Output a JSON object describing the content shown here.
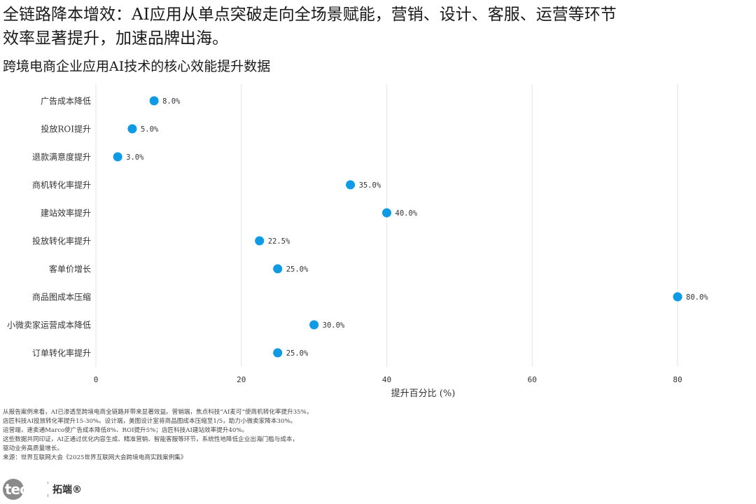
{
  "headline": {
    "line1": "全链路降本增效：AI应用从单点突破走向全场景赋能，营销、设计、客服、运营等环节",
    "line2": "效率显著提升，加速品牌出海。"
  },
  "chart_data": {
    "type": "scatter",
    "title": "跨境电商企业应用AI技术的核心效能提升数据",
    "xlabel": "提升百分比 (%)",
    "ylabel": "",
    "xlim": [
      0,
      85
    ],
    "xticks": [
      "0",
      "20",
      "40",
      "60",
      "80"
    ],
    "grid": "vertical",
    "marker_color": "#0E9AE4",
    "categories": [
      "广告成本降低",
      "投放ROI提升",
      "退款满意度提升",
      "商机转化率提升",
      "建站效率提升",
      "投放转化率提升",
      "客单价增长",
      "商品图成本压缩",
      "小微卖家运营成本降低",
      "订单转化率提升"
    ],
    "values": [
      8.0,
      5.0,
      3.0,
      35.0,
      40.0,
      22.5,
      25.0,
      80.0,
      30.0,
      25.0
    ],
    "value_labels": [
      "8.0%",
      "5.0%",
      "3.0%",
      "35.0%",
      "40.0%",
      "22.5%",
      "25.0%",
      "80.0%",
      "30.0%",
      "25.0%"
    ]
  },
  "notes": [
    "从报告案例来看，AI已渗透至跨境电商全链路并带来显著效益。营销端，焦点科技“AI麦可”使商机转化率提升35%，",
    "店匠科技AI投放转化率提升15-30%。设计端，美图设计室将商品图成本压缩至1/5，助力小微卖家降本30%。",
    "运营端，速卖通Marco使广告成本降低8%、ROI提升5%；店匠科技AI建站效率提升40%。",
    "这些数据共同印证，AI正通过优化内容生成、精准营销、智能客服等环节，系统性地降低企业出海门槛与成本，",
    "驱动业务高质量增长。",
    "来源：世界互联网大会《2025世界互联网大会跨境电商实践案例集》"
  ],
  "brand": {
    "logo_text": "tecdat",
    "name": "拓端®"
  }
}
